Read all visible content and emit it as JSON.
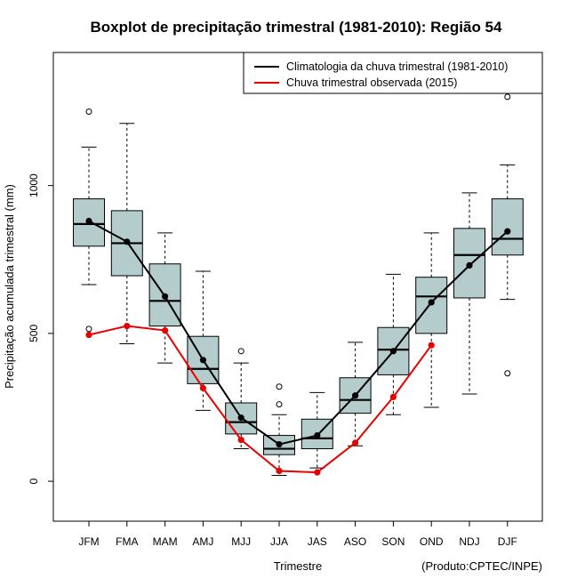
{
  "colors": {
    "box_fill": "#b4cccc",
    "climatology": "#000000",
    "observed": "#e60000",
    "outlier": "#000000"
  },
  "chart_data": {
    "type": "boxplot",
    "title": "Boxplot de precipitação trimestral (1981-2010): Região 54",
    "xlabel": "Trimestre",
    "ylabel": "Precipitação acumulada trimestral (mm)",
    "credit": "(Produto:CPTEC/INPE)",
    "ylim": [
      -135,
      1450
    ],
    "yticks": [
      0,
      500,
      1000
    ],
    "legend": {
      "placement": "top-right",
      "entries": [
        "Climatologia da chuva trimestral (1981-2010)",
        "Chuva trimestral observada (2015)"
      ]
    },
    "categories": [
      "JFM",
      "FMA",
      "MAM",
      "AMJ",
      "MJJ",
      "JJA",
      "JAS",
      "ASO",
      "SON",
      "OND",
      "NDJ",
      "DJF"
    ],
    "boxes": [
      {
        "whisker_low": 665,
        "q1": 795,
        "median": 870,
        "q3": 955,
        "whisker_high": 1130,
        "outliers": [
          1250,
          515
        ]
      },
      {
        "whisker_low": 465,
        "q1": 695,
        "median": 805,
        "q3": 915,
        "whisker_high": 1210,
        "outliers": []
      },
      {
        "whisker_low": 400,
        "q1": 525,
        "median": 610,
        "q3": 735,
        "whisker_high": 840,
        "outliers": []
      },
      {
        "whisker_low": 240,
        "q1": 330,
        "median": 380,
        "q3": 490,
        "whisker_high": 710,
        "outliers": []
      },
      {
        "whisker_low": 110,
        "q1": 160,
        "median": 200,
        "q3": 265,
        "whisker_high": 400,
        "outliers": [
          440
        ]
      },
      {
        "whisker_low": 20,
        "q1": 90,
        "median": 110,
        "q3": 155,
        "whisker_high": 225,
        "outliers": [
          320,
          260
        ]
      },
      {
        "whisker_low": 45,
        "q1": 110,
        "median": 145,
        "q3": 210,
        "whisker_high": 300,
        "outliers": []
      },
      {
        "whisker_low": 120,
        "q1": 230,
        "median": 275,
        "q3": 350,
        "whisker_high": 470,
        "outliers": []
      },
      {
        "whisker_low": 225,
        "q1": 360,
        "median": 445,
        "q3": 520,
        "whisker_high": 700,
        "outliers": []
      },
      {
        "whisker_low": 250,
        "q1": 500,
        "median": 625,
        "q3": 690,
        "whisker_high": 840,
        "outliers": []
      },
      {
        "whisker_low": 295,
        "q1": 620,
        "median": 765,
        "q3": 855,
        "whisker_high": 975,
        "outliers": []
      },
      {
        "whisker_low": 615,
        "q1": 765,
        "median": 820,
        "q3": 955,
        "whisker_high": 1070,
        "outliers": [
          1300,
          365
        ]
      }
    ],
    "series": [
      {
        "name": "Climatologia da chuva trimestral (1981-2010)",
        "values": [
          880,
          810,
          625,
          410,
          215,
          125,
          155,
          290,
          440,
          605,
          730,
          845
        ]
      },
      {
        "name": "Chuva trimestral observada (2015)",
        "values": [
          495,
          525,
          510,
          315,
          140,
          35,
          30,
          130,
          285,
          460,
          null,
          null
        ]
      }
    ]
  }
}
